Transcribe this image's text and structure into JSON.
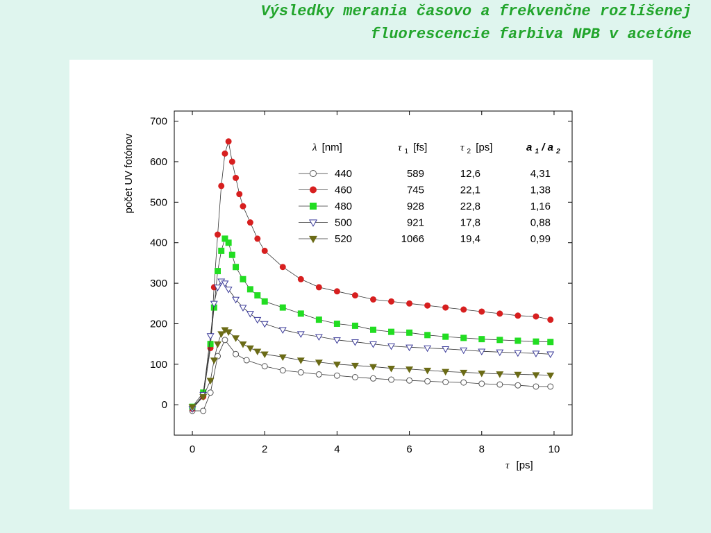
{
  "slide": {
    "title_line1": "Výsledky merania časovo a frekvenčne rozlíšenej",
    "title_line2": "fluorescencie farbiva NPB v acetóne"
  },
  "chart_data": {
    "type": "scatter",
    "xlabel": "τ [ps]",
    "xlabel_symbol": "τ",
    "xlabel_unit": "[ps]",
    "ylabel": "počet UV fotónov",
    "xlim": [
      -0.5,
      10.5
    ],
    "ylim": [
      -75,
      725
    ],
    "xticks": [
      0,
      2,
      4,
      6,
      8,
      10
    ],
    "yticks": [
      0,
      100,
      200,
      300,
      400,
      500,
      600,
      700
    ],
    "grid": false,
    "legend_position": "top-right",
    "legend_headers": {
      "lambda": "λ [nm]",
      "lambda_symbol": "λ",
      "lambda_unit": "[nm]",
      "tau1": "τ1 [fs]",
      "tau1_symbol": "τ",
      "tau1_sub": "1",
      "tau1_unit": "[fs]",
      "tau2": "τ2 [ps]",
      "tau2_symbol": "τ",
      "tau2_sub": "2",
      "tau2_unit": "[ps]",
      "ratio": "a1/a2",
      "ratio_a": "a",
      "ratio_sub1": "1",
      "ratio_slash": "/",
      "ratio_sub2": "2"
    },
    "series": [
      {
        "name": "440",
        "tau1": "589",
        "tau2": "12,6",
        "ratio": "4,31",
        "marker": "circle-open",
        "color": "#555555",
        "fill": "#ffffff",
        "x": [
          0.0,
          0.3,
          0.5,
          0.7,
          0.9,
          1.2,
          1.5,
          2,
          2.5,
          3,
          3.5,
          4,
          4.5,
          5,
          5.5,
          6,
          6.5,
          7,
          7.5,
          8,
          8.5,
          9,
          9.5,
          9.9
        ],
        "y": [
          -15,
          -15,
          30,
          120,
          160,
          125,
          110,
          95,
          85,
          80,
          75,
          72,
          68,
          65,
          62,
          60,
          58,
          56,
          55,
          52,
          50,
          48,
          45,
          45
        ]
      },
      {
        "name": "460",
        "tau1": "745",
        "tau2": "22,1",
        "ratio": "1,38",
        "marker": "circle-filled",
        "color": "#d71f1f",
        "fill": "#d71f1f",
        "x": [
          0.0,
          0.3,
          0.5,
          0.6,
          0.7,
          0.8,
          0.9,
          1.0,
          1.1,
          1.2,
          1.3,
          1.4,
          1.6,
          1.8,
          2,
          2.5,
          3,
          3.5,
          4,
          4.5,
          5,
          5.5,
          6,
          6.5,
          7,
          7.5,
          8,
          8.5,
          9,
          9.5,
          9.9
        ],
        "y": [
          -10,
          20,
          140,
          290,
          420,
          540,
          620,
          650,
          600,
          560,
          520,
          490,
          450,
          410,
          380,
          340,
          310,
          290,
          280,
          270,
          260,
          255,
          250,
          245,
          240,
          235,
          230,
          225,
          220,
          218,
          210
        ]
      },
      {
        "name": "480",
        "tau1": "928",
        "tau2": "22,8",
        "ratio": "1,16",
        "marker": "square-filled",
        "color": "#22dd22",
        "fill": "#22dd22",
        "x": [
          0.0,
          0.3,
          0.5,
          0.6,
          0.7,
          0.8,
          0.9,
          1.0,
          1.1,
          1.2,
          1.4,
          1.6,
          1.8,
          2,
          2.5,
          3,
          3.5,
          4,
          4.5,
          5,
          5.5,
          6,
          6.5,
          7,
          7.5,
          8,
          8.5,
          9,
          9.5,
          9.9
        ],
        "y": [
          -5,
          30,
          150,
          240,
          330,
          380,
          410,
          400,
          370,
          340,
          310,
          285,
          270,
          255,
          240,
          225,
          210,
          200,
          195,
          185,
          180,
          178,
          172,
          168,
          165,
          162,
          160,
          158,
          156,
          155
        ]
      },
      {
        "name": "500",
        "tau1": "921",
        "tau2": "17,8",
        "ratio": "0,88",
        "marker": "triangle-down-open",
        "color": "#3b3b9a",
        "fill": "#ffffff",
        "x": [
          0.0,
          0.3,
          0.5,
          0.6,
          0.7,
          0.8,
          0.9,
          1.0,
          1.2,
          1.4,
          1.6,
          1.8,
          2,
          2.5,
          3,
          3.5,
          4,
          4.5,
          5,
          5.5,
          6,
          6.5,
          7,
          7.5,
          8,
          8.5,
          9,
          9.5,
          9.9
        ],
        "y": [
          -10,
          25,
          170,
          250,
          290,
          305,
          300,
          285,
          260,
          240,
          225,
          210,
          200,
          185,
          175,
          168,
          160,
          155,
          150,
          145,
          142,
          140,
          138,
          135,
          132,
          130,
          128,
          127,
          125
        ]
      },
      {
        "name": "520",
        "tau1": "1066",
        "tau2": "19,4",
        "ratio": "0,99",
        "marker": "triangle-down-filled",
        "color": "#6b6b16",
        "fill": "#6b6b16",
        "x": [
          0.0,
          0.3,
          0.5,
          0.6,
          0.7,
          0.8,
          0.9,
          1.0,
          1.2,
          1.4,
          1.6,
          1.8,
          2,
          2.5,
          3,
          3.5,
          4,
          4.5,
          5,
          5.5,
          6,
          6.5,
          7,
          7.5,
          8,
          8.5,
          9,
          9.5,
          9.9
        ],
        "y": [
          -5,
          20,
          60,
          110,
          150,
          175,
          185,
          180,
          165,
          150,
          140,
          132,
          125,
          118,
          110,
          105,
          100,
          97,
          94,
          90,
          88,
          85,
          82,
          80,
          78,
          76,
          75,
          74,
          73
        ]
      }
    ]
  }
}
